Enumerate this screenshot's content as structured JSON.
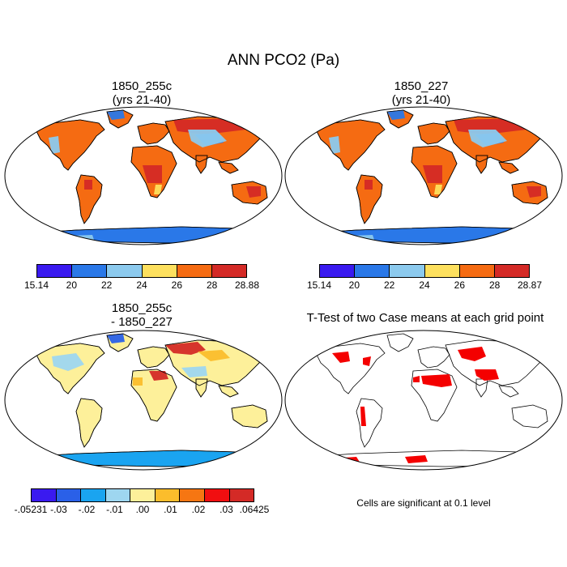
{
  "figure": {
    "title": "ANN PCO2 (Pa)"
  },
  "panels": {
    "p1": {
      "title_line1": "1850_255c",
      "title_line2": "(yrs 21-40)"
    },
    "p2": {
      "title_line1": "1850_227",
      "title_line2": "(yrs 21-40)"
    },
    "p3": {
      "title_line1": "1850_255c",
      "title_line2": "- 1850_227"
    },
    "p4": {
      "title_line1": "T-Test of two Case means at each grid point",
      "note": "Cells are significant at 0.1 level"
    }
  },
  "colorbars": {
    "cb1": {
      "colors": [
        "#3a1af0",
        "#2a78e8",
        "#8ccaee",
        "#fde05e",
        "#f56b12",
        "#d42a26"
      ],
      "labels": [
        "15.14",
        "20",
        "22",
        "24",
        "26",
        "28",
        "28.88"
      ]
    },
    "cb2": {
      "colors": [
        "#3a1af0",
        "#2a78e8",
        "#8ccaee",
        "#fde05e",
        "#f56b12",
        "#d42a26"
      ],
      "labels": [
        "15.14",
        "20",
        "22",
        "24",
        "26",
        "28",
        "28.87"
      ]
    },
    "cb3": {
      "colors": [
        "#3a1af0",
        "#2a60e8",
        "#1aa4f0",
        "#9ed6f0",
        "#fdf09a",
        "#fbbd2c",
        "#f67612",
        "#f10e10",
        "#d42a26"
      ],
      "labels": [
        "-.05231",
        "-.03",
        "-.02",
        "-.01",
        ".00",
        ".01",
        ".02",
        ".03",
        ".06425"
      ]
    }
  },
  "colors": {
    "significance": "#f40000",
    "ocean": "#ffffff",
    "coastline": "#000000"
  }
}
